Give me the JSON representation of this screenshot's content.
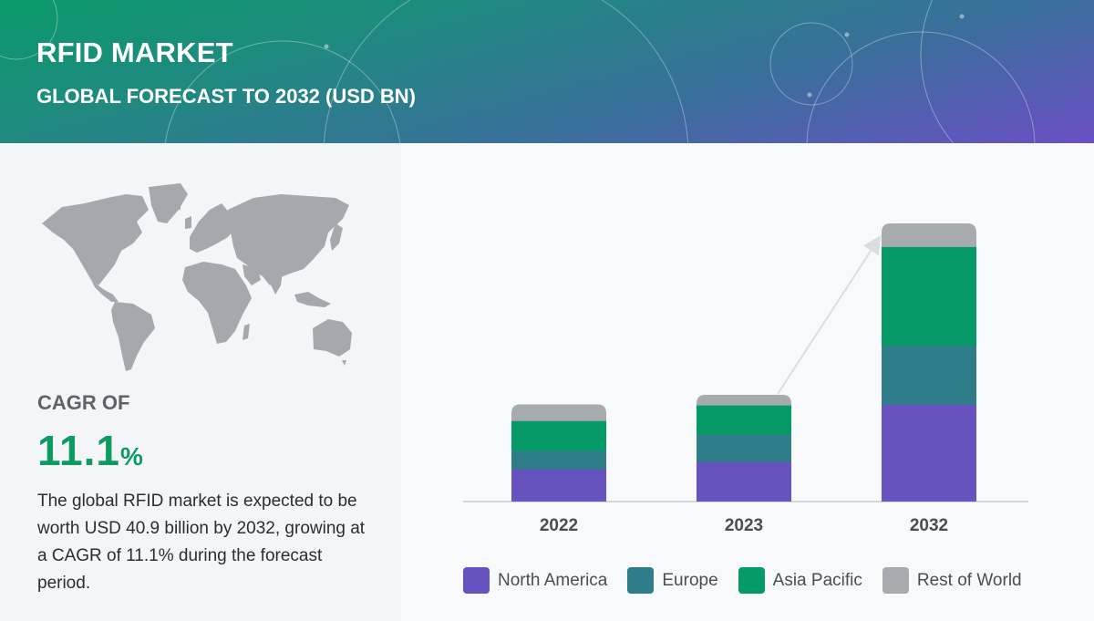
{
  "header": {
    "title": "RFID MARKET",
    "subtitle": "GLOBAL FORECAST TO 2032 (USD BN)"
  },
  "summary": {
    "cagr_label": "CAGR OF",
    "cagr_value": "11.1",
    "cagr_unit": "%",
    "description": "The global RFID market is expected to be worth USD 40.9 billion by 2032, growing at a CAGR of 11.1% during the forecast period."
  },
  "colors": {
    "north_america": "#6653bf",
    "europe": "#2e7d88",
    "asia_pacific": "#069a69",
    "rest_of_world": "#a7aaae",
    "accent_green": "#0e9a63"
  },
  "legend": [
    {
      "label": "North America",
      "color": "#6653bf"
    },
    {
      "label": "Europe",
      "color": "#2e7d88"
    },
    {
      "label": "Asia Pacific",
      "color": "#069a69"
    },
    {
      "label": "Rest of World",
      "color": "#a7aaae"
    }
  ],
  "chart_data": {
    "type": "bar",
    "stacked": true,
    "title": "RFID MARKET — GLOBAL FORECAST TO 2032 (USD BN)",
    "xlabel": "",
    "ylabel": "USD BN",
    "categories": [
      "2022",
      "2023",
      "2032"
    ],
    "series": [
      {
        "name": "North America",
        "color": "#6653bf",
        "values": [
          4.8,
          5.9,
          14.3
        ]
      },
      {
        "name": "Europe",
        "color": "#2e7d88",
        "values": [
          2.7,
          4.0,
          8.7
        ]
      },
      {
        "name": "Asia Pacific",
        "color": "#069a69",
        "values": [
          4.4,
          4.3,
          14.5
        ]
      },
      {
        "name": "Rest of World",
        "color": "#a7aaae",
        "values": [
          2.4,
          1.5,
          3.4
        ]
      }
    ],
    "totals": [
      14.3,
      15.7,
      40.9
    ],
    "annotations": [
      "Growth arrow from 2023 bar to 2032 bar"
    ],
    "grid": false,
    "axis_visible": false,
    "legend_position": "bottom",
    "ylim": [
      0,
      41
    ]
  }
}
